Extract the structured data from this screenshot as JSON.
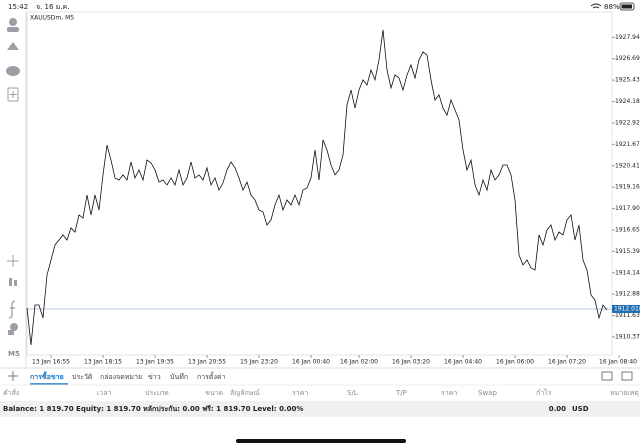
{
  "status_bar": {
    "time": "15:42",
    "date": "จ. 16 ม.ค.",
    "battery": "88%"
  },
  "left_toolbar": {
    "timeframe": "M5"
  },
  "chart_data": {
    "type": "line",
    "title": "XAUUSDm, M5",
    "color": "#111111",
    "values": [
      1912.08,
      1909.91,
      1912.25,
      1912.25,
      1911.49,
      1914.01,
      1914.89,
      1915.77,
      1916.06,
      1916.36,
      1916.06,
      1916.77,
      1916.53,
      1917.53,
      1917.35,
      1918.7,
      1917.53,
      1918.7,
      1917.82,
      1919.88,
      1921.63,
      1920.75,
      1919.7,
      1919.58,
      1919.88,
      1919.58,
      1920.64,
      1919.7,
      1920.17,
      1919.58,
      1920.75,
      1920.58,
      1920.17,
      1919.46,
      1919.58,
      1919.29,
      1919.7,
      1919.29,
      1920.17,
      1919.29,
      1919.7,
      1920.64,
      1919.7,
      1919.88,
      1919.58,
      1920.29,
      1919.29,
      1919.7,
      1918.99,
      1919.41,
      1920.17,
      1920.64,
      1920.29,
      1919.7,
      1918.99,
      1919.46,
      1918.7,
      1918.41,
      1917.82,
      1917.71,
      1916.94,
      1917.24,
      1918.12,
      1918.7,
      1917.82,
      1918.41,
      1918.12,
      1918.7,
      1918.12,
      1918.99,
      1919.11,
      1919.7,
      1921.34,
      1919.58,
      1921.93,
      1921.34,
      1920.46,
      1919.88,
      1920.17,
      1921.05,
      1923.98,
      1924.86,
      1923.8,
      1924.86,
      1925.45,
      1925.15,
      1926.03,
      1925.45,
      1926.62,
      1928.38,
      1926.03,
      1924.98,
      1925.74,
      1925.56,
      1924.86,
      1925.74,
      1926.33,
      1925.56,
      1926.62,
      1927.09,
      1926.91,
      1925.45,
      1924.27,
      1924.57,
      1923.8,
      1923.39,
      1924.27,
      1923.69,
      1923.1,
      1921.34,
      1920.17,
      1920.75,
      1919.29,
      1918.7,
      1919.58,
      1918.99,
      1920.17,
      1919.58,
      1919.88,
      1920.46,
      1920.46,
      1919.88,
      1918.41,
      1915.18,
      1914.6,
      1914.89,
      1914.42,
      1914.3,
      1916.36,
      1915.77,
      1916.65,
      1916.94,
      1916.06,
      1916.53,
      1916.36,
      1917.24,
      1917.53,
      1916.06,
      1916.94,
      1914.89,
      1914.3,
      1912.84,
      1912.54,
      1911.49,
      1912.25,
      1911.96
    ],
    "xlim": [
      0,
      148
    ],
    "xticks": [
      {
        "value": 6,
        "label": "13 Jan 16:55"
      },
      {
        "value": 19,
        "label": "13 Jan 18:15"
      },
      {
        "value": 32,
        "label": "13 Jan 19:35"
      },
      {
        "value": 45,
        "label": "13 Jan 20:55"
      },
      {
        "value": 58,
        "label": "15 Jan 23:20"
      },
      {
        "value": 71,
        "label": "16 Jan 00:40"
      },
      {
        "value": 83,
        "label": "16 Jan 02:00"
      },
      {
        "value": 96,
        "label": "16 Jan 03:20"
      },
      {
        "value": 109,
        "label": "16 Jan 04:40"
      },
      {
        "value": 122,
        "label": "16 Jan 06:00"
      },
      {
        "value": 135,
        "label": "16 Jan 07:20"
      },
      {
        "value": 148,
        "label": "16 Jan 08:40"
      }
    ],
    "ylim": [
      1909.32,
      1929.43
    ],
    "yticks": [
      1927.945,
      {
        "value": 1926.69,
        "label": "1926.690"
      },
      1925.435,
      {
        "value": 1924.18,
        "label": "1924.180"
      },
      1922.925,
      {
        "value": 1921.67,
        "label": "1921.670"
      },
      1920.415,
      {
        "value": 1919.16,
        "label": "1919.160"
      },
      1917.905,
      {
        "value": 1916.65,
        "label": "1916.650"
      },
      1915.395,
      {
        "value": 1914.14,
        "label": "1914.140"
      },
      1912.885,
      {
        "value": 1911.63,
        "label": "1911.630"
      },
      1910.375
    ],
    "bid_line": {
      "value": 1912.018,
      "label": "1912.018",
      "color": "#1f6fb5"
    }
  },
  "tabs": [
    "การซื้อขาย",
    "ประวัติ",
    "กล่องจดหมาย",
    "ข่าว",
    "บันทึก",
    "การตั้งค่า"
  ],
  "columns": [
    "คำสั่ง",
    "เวลา",
    "ประเภท",
    "ขนาด",
    "สัญลักษณ์",
    "ราคา",
    "S/L",
    "T/P",
    "ราคา",
    "Swap",
    "กำไร",
    "หมายเหตุ"
  ],
  "summary": {
    "text": "Balance: 1 819.70 Equity: 1 819.70 หลักประกัน: 0.00 ฟรี: 1 819.70 Level: 0.00%",
    "profit": "0.00",
    "currency": "USD"
  }
}
